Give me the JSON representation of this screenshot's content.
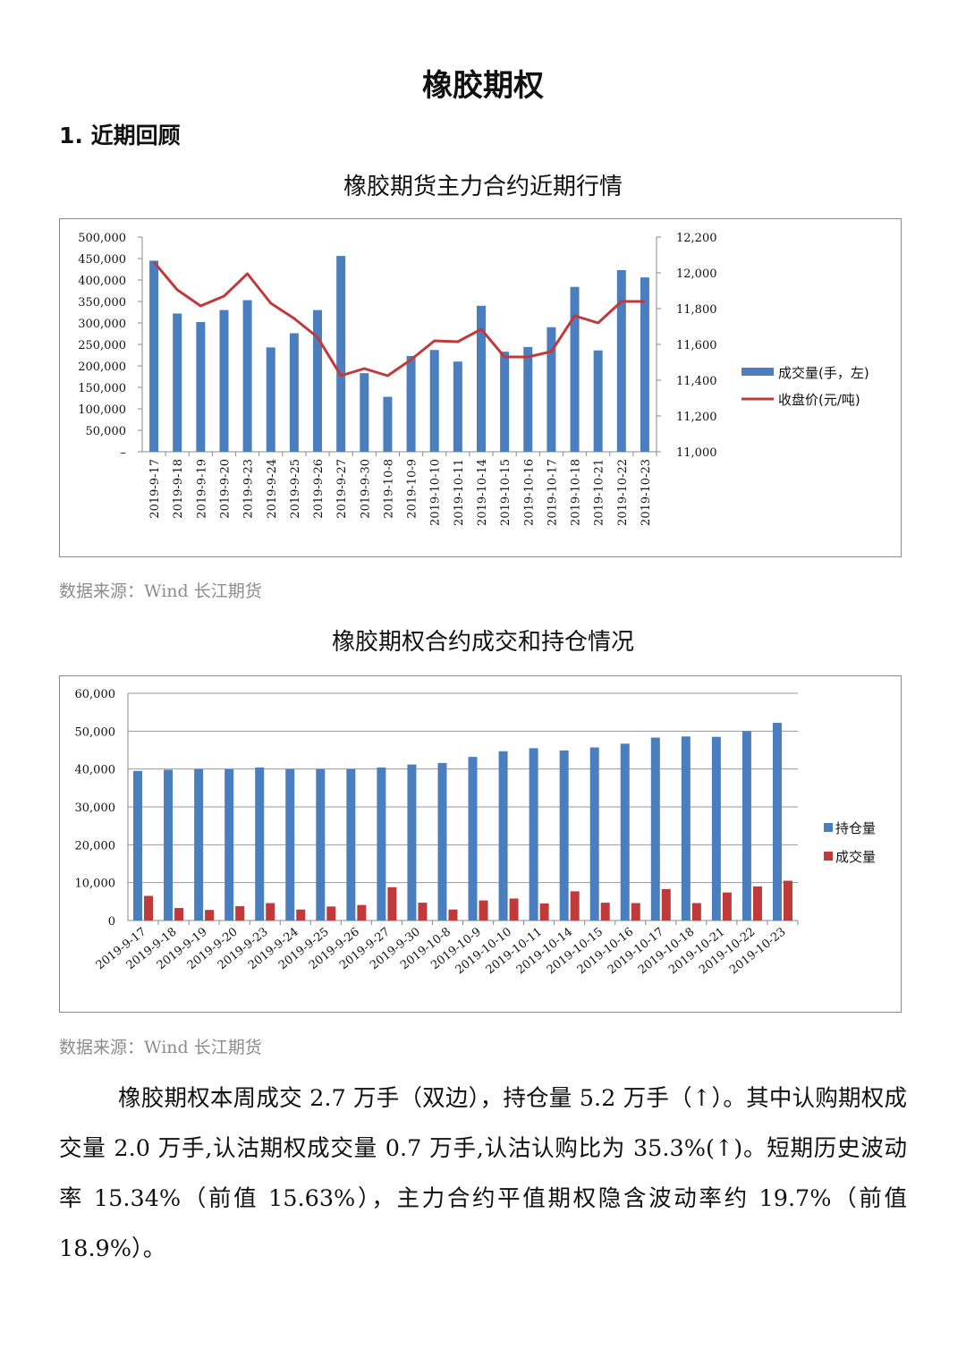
{
  "document": {
    "title": "橡胶期权",
    "section_heading": "1. 近期回顾",
    "paragraph": "橡胶期权本周成交 2.7 万手（双边），持仓量 5.2 万手（↑）。其中认购期权成交量 2.0 万手,认沽期权成交量 0.7 万手,认沽认购比为 35.3%(↑)。短期历史波动率 15.34%（前值 15.63%），主力合约平值期权隐含波动率约 19.7%（前值 18.9%）。"
  },
  "chart_data": [
    {
      "type": "bar",
      "title": "橡胶期货主力合约近期行情",
      "source": "数据来源：Wind 长江期货",
      "categories": [
        "2019-9-17",
        "2019-9-18",
        "2019-9-19",
        "2019-9-20",
        "2019-9-23",
        "2019-9-24",
        "2019-9-25",
        "2019-9-26",
        "2019-9-27",
        "2019-9-30",
        "2019-10-8",
        "2019-10-9",
        "2019-10-10",
        "2019-10-11",
        "2019-10-14",
        "2019-10-15",
        "2019-10-16",
        "2019-10-17",
        "2019-10-18",
        "2019-10-21",
        "2019-10-22",
        "2019-10-23"
      ],
      "series": [
        {
          "name": "成交量(手，左)",
          "type": "bar",
          "axis": "left",
          "color": "#4a7ebf",
          "values": [
            445000,
            322000,
            302000,
            330000,
            353000,
            243000,
            276000,
            330000,
            456000,
            183000,
            128000,
            223000,
            237000,
            210000,
            340000,
            233000,
            244000,
            290000,
            384000,
            236000,
            423000,
            406000
          ]
        },
        {
          "name": "收盘价(元/吨)",
          "type": "line",
          "axis": "right",
          "color": "#c0393b",
          "values": [
            12060,
            11905,
            11815,
            11870,
            11995,
            11830,
            11745,
            11640,
            11425,
            11465,
            11425,
            11515,
            11620,
            11615,
            11685,
            11530,
            11530,
            11560,
            11760,
            11720,
            11840,
            11840
          ]
        }
      ],
      "y_left": {
        "min": 0,
        "max": 500000,
        "step": 50000,
        "ticks": [
          "–",
          "50,000",
          "100,000",
          "150,000",
          "200,000",
          "250,000",
          "300,000",
          "350,000",
          "400,000",
          "450,000",
          "500,000"
        ]
      },
      "y_right": {
        "min": 11000,
        "max": 12200,
        "step": 200,
        "ticks": [
          "11,000",
          "11,200",
          "11,400",
          "11,600",
          "11,800",
          "12,000",
          "12,200"
        ]
      },
      "legend": "right"
    },
    {
      "type": "bar",
      "title": "橡胶期权合约成交和持仓情况",
      "source": "数据来源：Wind 长江期货",
      "categories": [
        "2019-9-17",
        "2019-9-18",
        "2019-9-19",
        "2019-9-20",
        "2019-9-23",
        "2019-9-24",
        "2019-9-25",
        "2019-9-26",
        "2019-9-27",
        "2019-9-30",
        "2019-10-8",
        "2019-10-9",
        "2019-10-10",
        "2019-10-11",
        "2019-10-14",
        "2019-10-15",
        "2019-10-16",
        "2019-10-17",
        "2019-10-18",
        "2019-10-21",
        "2019-10-22",
        "2019-10-23"
      ],
      "series": [
        {
          "name": "持仓量",
          "color": "#4a7ebf",
          "values": [
            39500,
            39800,
            40000,
            40000,
            40400,
            40000,
            40000,
            40000,
            40400,
            41200,
            41600,
            43200,
            44700,
            45500,
            44900,
            45700,
            46700,
            48300,
            48600,
            48500,
            50000,
            52200
          ]
        },
        {
          "name": "成交量",
          "color": "#c0393b",
          "values": [
            6500,
            3300,
            2800,
            3800,
            4600,
            2900,
            3700,
            4100,
            8800,
            4700,
            2900,
            5300,
            5800,
            4500,
            7700,
            4700,
            4600,
            8300,
            4600,
            7400,
            9000,
            10500
          ]
        }
      ],
      "y": {
        "min": 0,
        "max": 60000,
        "step": 10000,
        "ticks": [
          "0",
          "10,000",
          "20,000",
          "30,000",
          "40,000",
          "50,000",
          "60,000"
        ]
      },
      "legend": "right"
    }
  ]
}
